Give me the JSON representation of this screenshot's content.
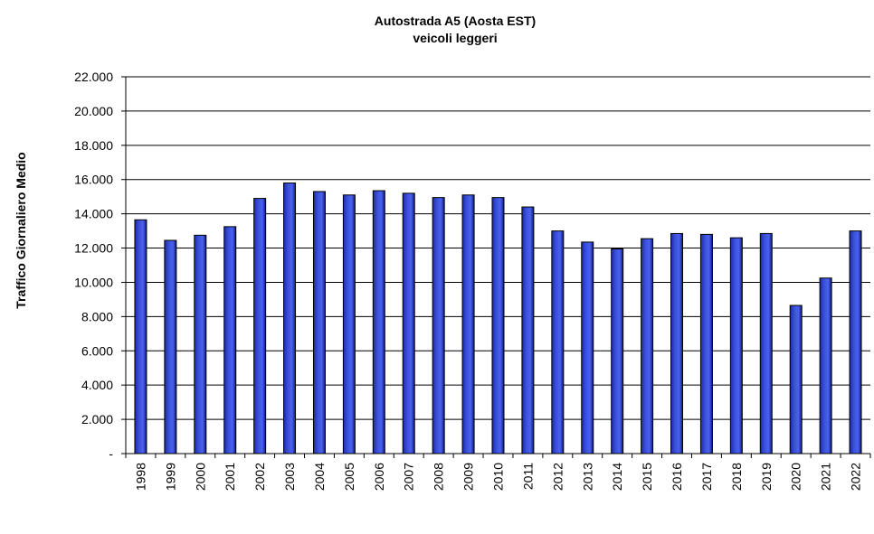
{
  "chart_data": {
    "type": "bar",
    "title": "Autostrada A5 (Aosta EST)",
    "subtitle": "veicoli leggeri",
    "xlabel": "",
    "ylabel": "Traffico Giornaliero Medio",
    "ylim": [
      0,
      22000
    ],
    "yticks": [
      0,
      2000,
      4000,
      6000,
      8000,
      10000,
      12000,
      14000,
      16000,
      18000,
      20000,
      22000
    ],
    "ytick_labels": [
      "-",
      "2.000",
      "4.000",
      "6.000",
      "8.000",
      "10.000",
      "12.000",
      "14.000",
      "16.000",
      "18.000",
      "20.000",
      "22.000"
    ],
    "grid": "horizontal",
    "legend": "none",
    "bar_color": "#3a4fd8",
    "categories": [
      "1998",
      "1999",
      "2000",
      "2001",
      "2002",
      "2003",
      "2004",
      "2005",
      "2006",
      "2007",
      "2008",
      "2009",
      "2010",
      "2011",
      "2012",
      "2013",
      "2014",
      "2015",
      "2016",
      "2017",
      "2018",
      "2019",
      "2020",
      "2021",
      "2022"
    ],
    "values": [
      13650,
      12450,
      12750,
      13250,
      14900,
      15800,
      15300,
      15100,
      15350,
      15200,
      14950,
      15100,
      14950,
      14400,
      13000,
      12350,
      11950,
      12550,
      12850,
      12800,
      12600,
      12850,
      8650,
      10250,
      13000
    ]
  }
}
